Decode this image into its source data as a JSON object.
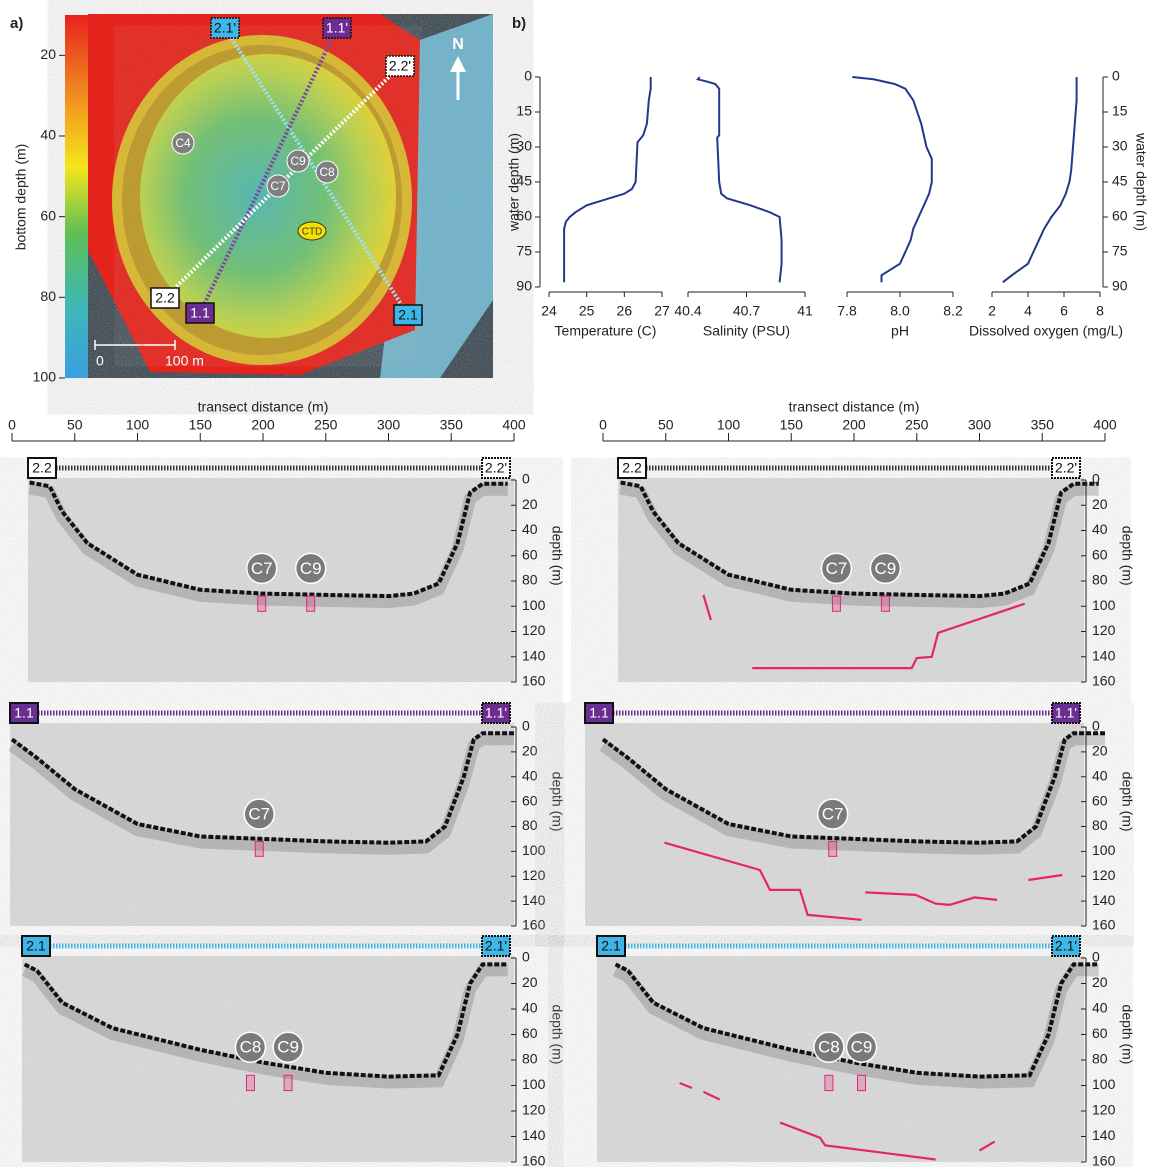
{
  "chart_data": [
    {
      "type": "map",
      "label": "a)",
      "ylabel": "bottom depth (m)",
      "ylim": [
        10,
        100
      ],
      "yticks": [
        20,
        40,
        60,
        80,
        100
      ],
      "scale_bar": [
        "0",
        "100 m"
      ],
      "north": "N",
      "markers": [
        "2.1'",
        "1.1'",
        "2.2'",
        "2.2",
        "1.1",
        "2.1"
      ],
      "sites": [
        "C4",
        "C9",
        "C8",
        "C7",
        "CTD"
      ]
    },
    {
      "type": "line",
      "label": "b)",
      "ylabel": "water depth (m)",
      "y2label": "water depth (m)",
      "ylim": [
        0,
        90
      ],
      "yticks": [
        0,
        15,
        30,
        45,
        60,
        75,
        90
      ],
      "color": "#23388c",
      "panels": [
        {
          "xlabel": "Temperature (C)",
          "xlim": [
            24,
            27
          ],
          "xticks": [
            24,
            25,
            26,
            27
          ],
          "depth": [
            0,
            5,
            10,
            20,
            25,
            28,
            45,
            48,
            50,
            52,
            55,
            58,
            60,
            62,
            65,
            70,
            80,
            88
          ],
          "values": [
            26.7,
            26.7,
            26.65,
            26.6,
            26.5,
            26.35,
            26.3,
            26.2,
            26.0,
            25.6,
            25.0,
            24.7,
            24.55,
            24.45,
            24.4,
            24.4,
            24.4,
            24.4
          ]
        },
        {
          "xlabel": "Salinity (PSU)",
          "xlim": [
            40.4,
            41
          ],
          "xticks": [
            40.4,
            40.7,
            41
          ],
          "depth": [
            0,
            1,
            2,
            3,
            5,
            25,
            26,
            45,
            50,
            52,
            55,
            58,
            60,
            70,
            80,
            88
          ],
          "values": [
            40.46,
            40.45,
            40.5,
            40.54,
            40.56,
            40.56,
            40.55,
            40.56,
            40.57,
            40.6,
            40.72,
            40.82,
            40.87,
            40.88,
            40.88,
            40.87
          ]
        },
        {
          "xlabel": "pH",
          "xlim": [
            7.8,
            8.2
          ],
          "xticks": [
            7.8,
            {
              "value": 8,
              "label": "8.0"
            },
            8.2
          ],
          "depth": [
            0,
            1,
            3,
            5,
            10,
            20,
            30,
            35,
            45,
            50,
            55,
            60,
            65,
            70,
            75,
            80,
            85,
            88
          ],
          "values": [
            7.82,
            7.9,
            7.98,
            8.02,
            8.05,
            8.08,
            8.1,
            8.12,
            8.12,
            8.11,
            8.09,
            8.07,
            8.05,
            8.04,
            8.02,
            8.0,
            7.93,
            7.93
          ]
        },
        {
          "xlabel": "Dissolved oxygen (mg/L)",
          "xlim": [
            2,
            8
          ],
          "xticks": [
            2,
            4,
            6,
            8
          ],
          "depth": [
            0,
            10,
            20,
            30,
            40,
            45,
            50,
            55,
            60,
            65,
            70,
            75,
            80,
            85,
            88
          ],
          "values": [
            6.7,
            6.7,
            6.6,
            6.5,
            6.4,
            6.3,
            6.1,
            5.8,
            5.3,
            4.9,
            4.6,
            4.3,
            4.0,
            3.1,
            2.6
          ]
        }
      ]
    },
    {
      "type": "profile",
      "xlabel": "transect distance (m)",
      "xlim": [
        0,
        400
      ],
      "xticks": [
        0,
        50,
        100,
        150,
        200,
        250,
        300,
        350,
        400
      ],
      "ylabel": "depth (m)",
      "ylim": [
        0,
        160
      ],
      "yticks": [
        0,
        20,
        40,
        60,
        80,
        100,
        120,
        140,
        160
      ],
      "rows": [
        {
          "start": "2.2",
          "end": "2.2'",
          "color": "#ffffff",
          "seafloor": {
            "x": [
              14,
              30,
              40,
              60,
              100,
              150,
              200,
              250,
              300,
              320,
              340,
              355,
              365,
              375,
              395
            ],
            "y": [
              2,
              5,
              25,
              50,
              75,
              87,
              90,
              91,
              92,
              90,
              82,
              50,
              10,
              3,
              3
            ]
          },
          "cores_left": [
            {
              "label": "C7",
              "x": 199
            },
            {
              "label": "C9",
              "x": 238
            }
          ],
          "cores_right": [
            {
              "label": "C7",
              "x": 186
            },
            {
              "label": "C9",
              "x": 225
            }
          ],
          "horizons": [
            {
              "x": [
                80,
                86
              ],
              "y": [
                91,
                111
              ]
            },
            {
              "x": [
                119,
                246,
                250,
                262,
                267,
                336
              ],
              "y": [
                149,
                149,
                141,
                140,
                121,
                98
              ]
            }
          ]
        },
        {
          "start": "1.1",
          "end": "1.1'",
          "color": "#6b2d8f",
          "seafloor": {
            "x": [
              0,
              20,
              50,
              100,
              150,
              200,
              250,
              300,
              330,
              345,
              360,
              368,
              375,
              400
            ],
            "y": [
              10,
              25,
              50,
              78,
              88,
              90,
              92,
              93,
              92,
              80,
              40,
              10,
              5,
              5
            ]
          },
          "cores_left": [
            {
              "label": "C7",
              "x": 197
            }
          ],
          "cores_right": [
            {
              "label": "C7",
              "x": 183
            }
          ],
          "horizons": [
            {
              "x": [
                49,
                125,
                133,
                157,
                163,
                206
              ],
              "y": [
                93,
                115,
                131,
                131,
                151,
                155
              ]
            },
            {
              "x": [
                209,
                249,
                265,
                276,
                296,
                314
              ],
              "y": [
                133,
                135,
                142,
                143,
                137,
                139
              ]
            },
            {
              "x": [
                339,
                366
              ],
              "y": [
                123,
                119
              ]
            }
          ]
        },
        {
          "start": "2.1",
          "end": "2.1'",
          "color": "#3fb6e8",
          "seafloor": {
            "x": [
              10,
              20,
              40,
              80,
              150,
              200,
              250,
              300,
              340,
              355,
              365,
              375,
              395
            ],
            "y": [
              5,
              10,
              35,
              55,
              72,
              82,
              90,
              93,
              92,
              60,
              20,
              5,
              5
            ]
          },
          "cores_left": [
            {
              "label": "C8",
              "x": 190
            },
            {
              "label": "C9",
              "x": 220
            }
          ],
          "cores_right": [
            {
              "label": "C8",
              "x": 180
            },
            {
              "label": "C9",
              "x": 206
            }
          ],
          "horizons": [
            {
              "x": [
                61,
                71
              ],
              "y": [
                98,
                102
              ]
            },
            {
              "x": [
                80,
                93
              ],
              "y": [
                105,
                111
              ]
            },
            {
              "x": [
                141,
                173,
                177,
                265
              ],
              "y": [
                129,
                141,
                147,
                158
              ]
            },
            {
              "x": [
                300,
                312
              ],
              "y": [
                151,
                144
              ]
            }
          ]
        }
      ]
    }
  ]
}
